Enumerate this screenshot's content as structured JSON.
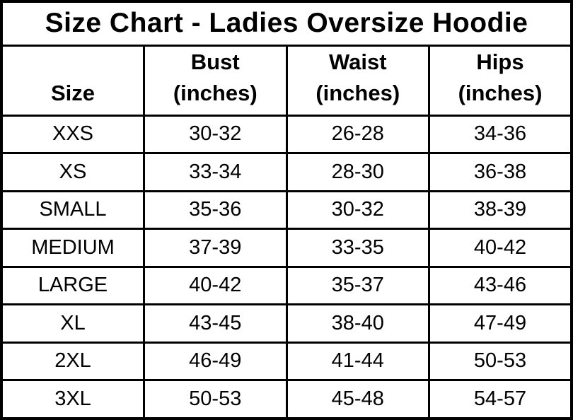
{
  "chart_data": {
    "type": "table",
    "title": "Size Chart - Ladies Oversize Hoodie",
    "columns": [
      "Size",
      "Bust\n(inches)",
      "Waist\n(inches)",
      "Hips\n(inches)"
    ],
    "rows": [
      {
        "size": "XXS",
        "bust": "30-32",
        "waist": "26-28",
        "hips": "34-36"
      },
      {
        "size": "XS",
        "bust": "33-34",
        "waist": "28-30",
        "hips": "36-38"
      },
      {
        "size": "SMALL",
        "bust": "35-36",
        "waist": "30-32",
        "hips": "38-39"
      },
      {
        "size": "MEDIUM",
        "bust": "37-39",
        "waist": "33-35",
        "hips": "40-42"
      },
      {
        "size": "LARGE",
        "bust": "40-42",
        "waist": "35-37",
        "hips": "43-46"
      },
      {
        "size": "XL",
        "bust": "43-45",
        "waist": "38-40",
        "hips": "47-49"
      },
      {
        "size": "2XL",
        "bust": "46-49",
        "waist": "41-44",
        "hips": "50-53"
      },
      {
        "size": "3XL",
        "bust": "50-53",
        "waist": "45-48",
        "hips": "54-57"
      }
    ],
    "layout": {
      "grid": "on",
      "border_color": "#000000",
      "background_color": "#ffffff",
      "text_color": "#000000"
    }
  }
}
